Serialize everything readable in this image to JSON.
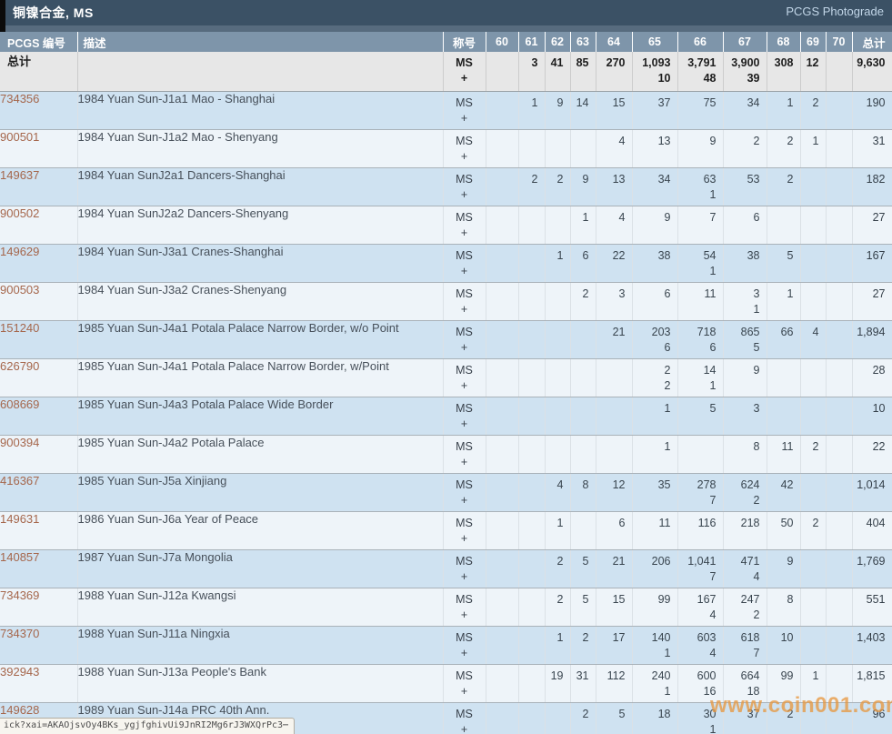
{
  "titlebar": {
    "title": "铜镍合金, MS",
    "photograde_link": "PCGS Photograde"
  },
  "table": {
    "col_pcgs_header": "PCGS 编号",
    "col_desc_header": "描述",
    "col_title_header": "称号",
    "grade_headers": [
      "60",
      "61",
      "62",
      "63",
      "64",
      "65",
      "66",
      "67",
      "68",
      "69",
      "70"
    ],
    "col_total_header": "总计",
    "designation": {
      "ms": "MS",
      "plus": "+"
    },
    "totals": {
      "label": "总计",
      "ms": [
        "",
        "3",
        "41",
        "85",
        "270",
        "1,093",
        "3,791",
        "3,900",
        "308",
        "12",
        "",
        "9,630"
      ],
      "plus": [
        "",
        "",
        "",
        "",
        "",
        "10",
        "48",
        "39",
        "",
        "",
        "",
        ""
      ]
    },
    "rows": [
      {
        "pcgs": "734356",
        "desc": "1984 Yuan Sun-J1a1 Mao - Shanghai",
        "ms": [
          "",
          "1",
          "9",
          "14",
          "15",
          "37",
          "75",
          "34",
          "1",
          "2",
          "",
          "190"
        ],
        "plus": [
          "",
          "",
          "",
          "",
          "",
          "",
          "",
          "",
          "",
          "",
          "",
          ""
        ]
      },
      {
        "pcgs": "900501",
        "desc": "1984 Yuan Sun-J1a2 Mao - Shenyang",
        "ms": [
          "",
          "",
          "",
          "",
          "4",
          "13",
          "9",
          "2",
          "2",
          "1",
          "",
          "31"
        ],
        "plus": [
          "",
          "",
          "",
          "",
          "",
          "",
          "",
          "",
          "",
          "",
          "",
          ""
        ]
      },
      {
        "pcgs": "149637",
        "desc": "1984 Yuan SunJ2a1 Dancers-Shanghai",
        "ms": [
          "",
          "2",
          "2",
          "9",
          "13",
          "34",
          "63",
          "53",
          "2",
          "",
          "",
          "182"
        ],
        "plus": [
          "",
          "",
          "",
          "",
          "",
          "",
          "1",
          "",
          "",
          "",
          "",
          ""
        ]
      },
      {
        "pcgs": "900502",
        "desc": "1984 Yuan SunJ2a2 Dancers-Shenyang",
        "ms": [
          "",
          "",
          "",
          "1",
          "4",
          "9",
          "7",
          "6",
          "",
          "",
          "",
          "27"
        ],
        "plus": [
          "",
          "",
          "",
          "",
          "",
          "",
          "",
          "",
          "",
          "",
          "",
          ""
        ]
      },
      {
        "pcgs": "149629",
        "desc": "1984 Yuan Sun-J3a1 Cranes-Shanghai",
        "ms": [
          "",
          "",
          "1",
          "6",
          "22",
          "38",
          "54",
          "38",
          "5",
          "",
          "",
          "167"
        ],
        "plus": [
          "",
          "",
          "",
          "",
          "",
          "",
          "1",
          "",
          "",
          "",
          "",
          ""
        ]
      },
      {
        "pcgs": "900503",
        "desc": "1984 Yuan Sun-J3a2 Cranes-Shenyang",
        "ms": [
          "",
          "",
          "",
          "2",
          "3",
          "6",
          "11",
          "3",
          "1",
          "",
          "",
          "27"
        ],
        "plus": [
          "",
          "",
          "",
          "",
          "",
          "",
          "",
          "1",
          "",
          "",
          "",
          ""
        ]
      },
      {
        "pcgs": "151240",
        "desc": "1985 Yuan Sun-J4a1 Potala Palace Narrow Border, w/o Point",
        "ms": [
          "",
          "",
          "",
          "",
          "21",
          "203",
          "718",
          "865",
          "66",
          "4",
          "",
          "1,894"
        ],
        "plus": [
          "",
          "",
          "",
          "",
          "",
          "6",
          "6",
          "5",
          "",
          "",
          "",
          ""
        ]
      },
      {
        "pcgs": "626790",
        "desc": "1985 Yuan Sun-J4a1 Potala Palace Narrow Border, w/Point",
        "ms": [
          "",
          "",
          "",
          "",
          "",
          "2",
          "14",
          "9",
          "",
          "",
          "",
          "28"
        ],
        "plus": [
          "",
          "",
          "",
          "",
          "",
          "2",
          "1",
          "",
          "",
          "",
          "",
          ""
        ]
      },
      {
        "pcgs": "608669",
        "desc": "1985 Yuan Sun-J4a3 Potala Palace Wide Border",
        "ms": [
          "",
          "",
          "",
          "",
          "",
          "1",
          "5",
          "3",
          "",
          "",
          "",
          "10"
        ],
        "plus": [
          "",
          "",
          "",
          "",
          "",
          "",
          "",
          "",
          "",
          "",
          "",
          ""
        ]
      },
      {
        "pcgs": "900394",
        "desc": "1985 Yuan Sun-J4a2 Potala Palace",
        "ms": [
          "",
          "",
          "",
          "",
          "",
          "1",
          "",
          "8",
          "11",
          "2",
          "",
          "22"
        ],
        "plus": [
          "",
          "",
          "",
          "",
          "",
          "",
          "",
          "",
          "",
          "",
          "",
          ""
        ]
      },
      {
        "pcgs": "416367",
        "desc": "1985 Yuan Sun-J5a Xinjiang",
        "ms": [
          "",
          "",
          "4",
          "8",
          "12",
          "35",
          "278",
          "624",
          "42",
          "",
          "",
          "1,014"
        ],
        "plus": [
          "",
          "",
          "",
          "",
          "",
          "",
          "7",
          "2",
          "",
          "",
          "",
          ""
        ]
      },
      {
        "pcgs": "149631",
        "desc": "1986 Yuan Sun-J6a Year of Peace",
        "ms": [
          "",
          "",
          "1",
          "",
          "6",
          "11",
          "116",
          "218",
          "50",
          "2",
          "",
          "404"
        ],
        "plus": [
          "",
          "",
          "",
          "",
          "",
          "",
          "",
          "",
          "",
          "",
          "",
          ""
        ]
      },
      {
        "pcgs": "140857",
        "desc": "1987 Yuan Sun-J7a Mongolia",
        "ms": [
          "",
          "",
          "2",
          "5",
          "21",
          "206",
          "1,041",
          "471",
          "9",
          "",
          "",
          "1,769"
        ],
        "plus": [
          "",
          "",
          "",
          "",
          "",
          "",
          "7",
          "4",
          "",
          "",
          "",
          ""
        ]
      },
      {
        "pcgs": "734369",
        "desc": "1988 Yuan Sun-J12a Kwangsi",
        "ms": [
          "",
          "",
          "2",
          "5",
          "15",
          "99",
          "167",
          "247",
          "8",
          "",
          "",
          "551"
        ],
        "plus": [
          "",
          "",
          "",
          "",
          "",
          "",
          "4",
          "2",
          "",
          "",
          "",
          ""
        ]
      },
      {
        "pcgs": "734370",
        "desc": "1988 Yuan Sun-J11a Ningxia",
        "ms": [
          "",
          "",
          "1",
          "2",
          "17",
          "140",
          "603",
          "618",
          "10",
          "",
          "",
          "1,403"
        ],
        "plus": [
          "",
          "",
          "",
          "",
          "",
          "1",
          "4",
          "7",
          "",
          "",
          "",
          ""
        ]
      },
      {
        "pcgs": "392943",
        "desc": "1988 Yuan Sun-J13a People's Bank",
        "ms": [
          "",
          "",
          "19",
          "31",
          "112",
          "240",
          "600",
          "664",
          "99",
          "1",
          "",
          "1,815"
        ],
        "plus": [
          "",
          "",
          "",
          "",
          "",
          "1",
          "16",
          "18",
          "",
          "",
          "",
          ""
        ]
      },
      {
        "pcgs": "149628",
        "desc": "1989 Yuan Sun-J14a PRC 40th Ann.",
        "ms": [
          "",
          "",
          "",
          "2",
          "5",
          "18",
          "30",
          "37",
          "2",
          "",
          "",
          "96"
        ],
        "plus": [
          "",
          "",
          "",
          "",
          "",
          "",
          "1",
          "",
          "",
          "",
          "",
          ""
        ]
      }
    ]
  },
  "statusbar": {
    "text": "ick?xai=AKAOjsvOy4BKs_ygjfghivUi9JnRI2Mg6rJ3WXQrPc3⋯"
  },
  "watermark": {
    "text": "www.coin001.com"
  },
  "colors": {
    "topbar_bg": "#3b5165",
    "topbar_strip": "#576b7e",
    "header_bg": "#7e95aa",
    "row_blue": "#cfe2f1",
    "row_white": "#eef4f9",
    "totals_bg": "#e7e7e7",
    "link_color": "#a5664b",
    "photograde_color": "#c2d6e8",
    "watermark_color": "#e8963c"
  }
}
